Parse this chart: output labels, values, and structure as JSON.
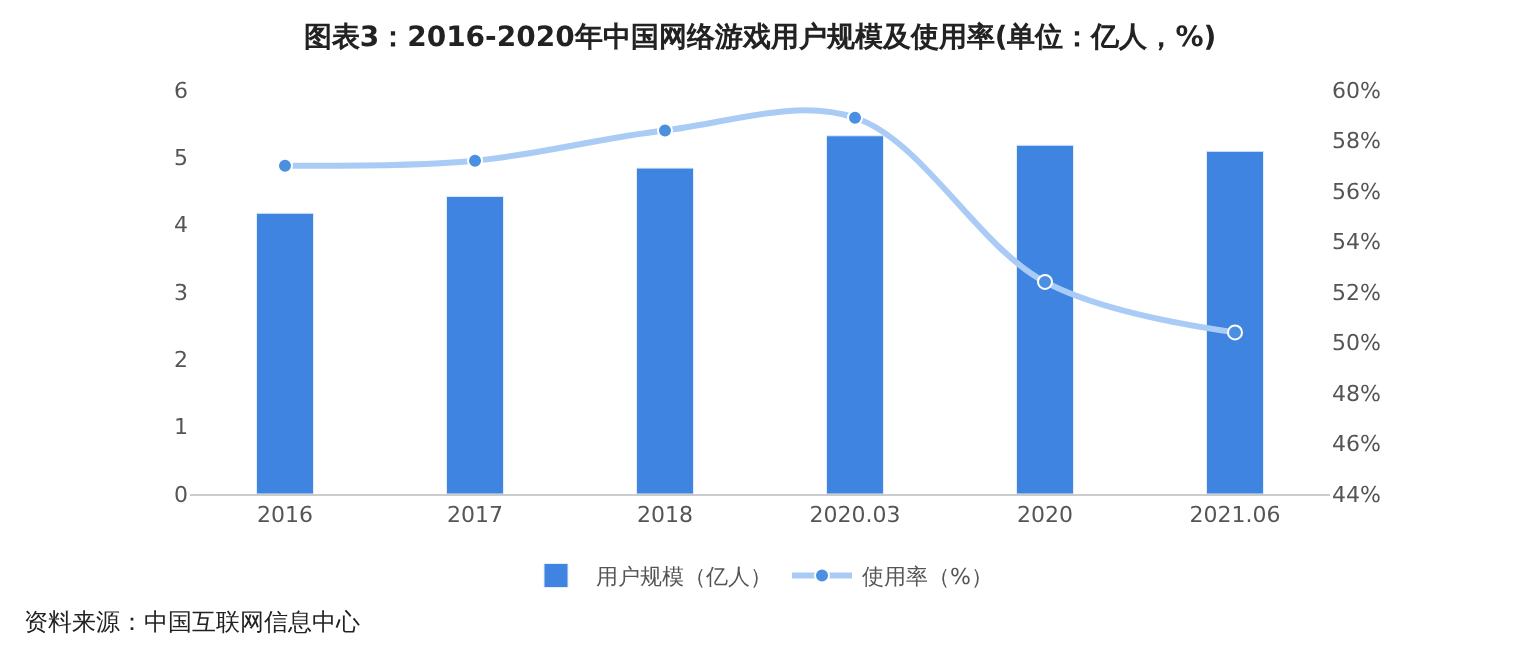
{
  "chart_data": {
    "type": "bar",
    "title": "图表3：2016-2020年中国网络游戏用户规模及使用率(单位：亿人，%)",
    "categories": [
      "2016",
      "2017",
      "2018",
      "2020.03",
      "2020",
      "2021.06"
    ],
    "series": [
      {
        "name": "用户规模（亿人）",
        "color": "#3f84e0",
        "values": [
          4.17,
          4.42,
          4.84,
          5.32,
          5.18,
          5.09
        ]
      },
      {
        "name": "使用率（%）",
        "type": "line",
        "axis": "y2",
        "color": "#a9cbf5",
        "values": [
          57.0,
          57.2,
          58.4,
          58.9,
          52.4,
          50.4
        ]
      }
    ],
    "ylim": [
      0,
      6
    ],
    "yticks": [
      0,
      1,
      2,
      3,
      4,
      5,
      6
    ],
    "y2lim": [
      44,
      60
    ],
    "y2ticks": [
      {
        "value": 44,
        "label": "44%"
      },
      {
        "value": 46,
        "label": "46%"
      },
      {
        "value": 48,
        "label": "48%"
      },
      {
        "value": 50,
        "label": "50%"
      },
      {
        "value": 52,
        "label": "52%"
      },
      {
        "value": 54,
        "label": "54%"
      },
      {
        "value": 56,
        "label": "56%"
      },
      {
        "value": 58,
        "label": "58%"
      },
      {
        "value": 60,
        "label": "60%"
      }
    ],
    "marker": "circle",
    "legend": "bottom",
    "annotations": [
      "资料来源：中国互联网信息中心"
    ]
  }
}
